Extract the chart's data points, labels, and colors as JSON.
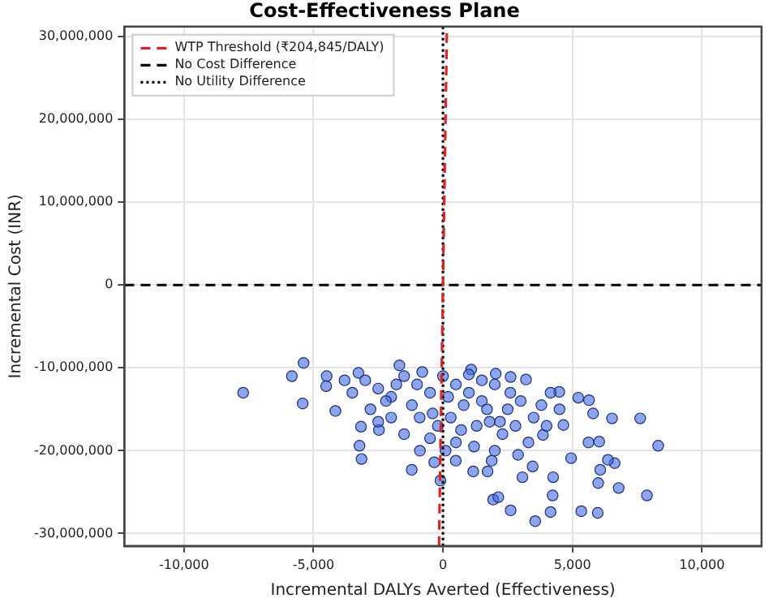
{
  "chart_data": {
    "type": "scatter",
    "title": "Cost-Effectiveness Plane",
    "xlabel": "Incremental DALYs Averted (Effectiveness)",
    "ylabel": "Incremental Cost (INR)",
    "xlim": [
      -12300,
      12300
    ],
    "ylim": [
      -31500000,
      31200000
    ],
    "xticks": [
      {
        "value": -10000,
        "label": "-10,000"
      },
      {
        "value": -5000,
        "label": "-5,000"
      },
      0,
      {
        "value": 5000,
        "label": "5,000"
      },
      {
        "value": 10000,
        "label": "10,000"
      }
    ],
    "yticks": [
      {
        "value": -30000000,
        "label": "-30,000,000"
      },
      {
        "value": -20000000,
        "label": "-20,000,000"
      },
      {
        "value": -10000000,
        "label": "-10,000,000"
      },
      0,
      {
        "value": 10000000,
        "label": "10,000,000"
      },
      {
        "value": 20000000,
        "label": "20,000,000"
      },
      {
        "value": 30000000,
        "label": "30,000,000"
      }
    ],
    "grid": true,
    "legend": "top left",
    "series": [
      {
        "color": "#4169e1",
        "marker": "circle",
        "x": [
          -7715,
          -5383,
          -5834,
          -5418,
          8309,
          7614,
          7874,
          3561,
          5975,
          5341,
          4154,
          2611,
          1939,
          2136,
          6785,
          4234,
          5994,
          6073,
          6628,
          6370,
          5618,
          6033,
          6528,
          5796,
          5223,
          5638,
          4490,
          4154,
          3205,
          2611,
          2037,
          1088,
          -1682,
          -3264,
          -4491,
          -4510,
          -4154,
          -3165,
          -3224,
          -3145,
          -1207,
          -336,
          -99,
          1168,
          1721,
          3067,
          4254,
          4946,
          4650,
          3858,
          3462,
          1880,
          494,
          -890,
          -2472,
          -3000,
          -2500,
          -2000,
          -1500,
          -1000,
          -500,
          0,
          500,
          1000,
          1500,
          2000,
          2500,
          3000,
          3500,
          4000,
          -3500,
          -2800,
          -2000,
          -1200,
          -400,
          300,
          800,
          1300,
          1800,
          2300,
          2800,
          3300,
          -1500,
          -500,
          500,
          1200,
          2000,
          -2500,
          200,
          1500,
          -800,
          2600,
          3800,
          4500,
          -3800,
          -200,
          700,
          1700,
          2200,
          2900,
          -1800,
          -2200,
          100,
          -900,
          1000
        ],
        "values": [
          -13000000,
          -9400000,
          -11000000,
          -14300000,
          -19400000,
          -16100000,
          -25400000,
          -28500000,
          -27500000,
          -27300000,
          -27400000,
          -27200000,
          -25900000,
          -25600000,
          -24500000,
          -25400000,
          -23900000,
          -22300000,
          -21500000,
          -21100000,
          -19000000,
          -18900000,
          -16100000,
          -15500000,
          -13600000,
          -13900000,
          -12900000,
          -13000000,
          -11400000,
          -11100000,
          -10700000,
          -10200000,
          -9700000,
          -10600000,
          -11000000,
          -12200000,
          -15200000,
          -17100000,
          -19400000,
          -21000000,
          -22300000,
          -21400000,
          -23600000,
          -22500000,
          -22500000,
          -23200000,
          -23200000,
          -20900000,
          -16900000,
          -18100000,
          -21900000,
          -21200000,
          -21200000,
          -20000000,
          -17500000,
          -11500000,
          -12500000,
          -13500000,
          -11000000,
          -12000000,
          -13000000,
          -11000000,
          -12000000,
          -13000000,
          -14000000,
          -12000000,
          -15000000,
          -14000000,
          -16000000,
          -17000000,
          -13000000,
          -15000000,
          -16000000,
          -14500000,
          -15500000,
          -16000000,
          -14500000,
          -17000000,
          -16500000,
          -18000000,
          -17000000,
          -19000000,
          -18000000,
          -18500000,
          -19000000,
          -19500000,
          -20000000,
          -16500000,
          -13500000,
          -11500000,
          -10500000,
          -13000000,
          -14500000,
          -15000000,
          -11500000,
          -17000000,
          -17500000,
          -15000000,
          -16500000,
          -20500000,
          -12000000,
          -14000000,
          -20000000,
          -16000000,
          -10800000
        ]
      },
      {
        "type": "line",
        "name": "WTP Threshold (₹204,845/DALY)",
        "color": "#d62728",
        "line_style": "dashed",
        "marker": "none",
        "x": [
          -153.8,
          152.3
        ],
        "values": [
          -31500000,
          31200000
        ]
      },
      {
        "type": "line",
        "name": "No Cost Difference",
        "color": "#000000",
        "line_style": "dashed",
        "marker": "none",
        "x": [
          -12300,
          12300
        ],
        "values": [
          0,
          0
        ]
      },
      {
        "type": "line",
        "name": "No Utility Difference",
        "color": "#000000",
        "line_style": "dotted",
        "marker": "none",
        "x": [
          0,
          0
        ],
        "values": [
          -31500000,
          31200000
        ]
      }
    ]
  }
}
